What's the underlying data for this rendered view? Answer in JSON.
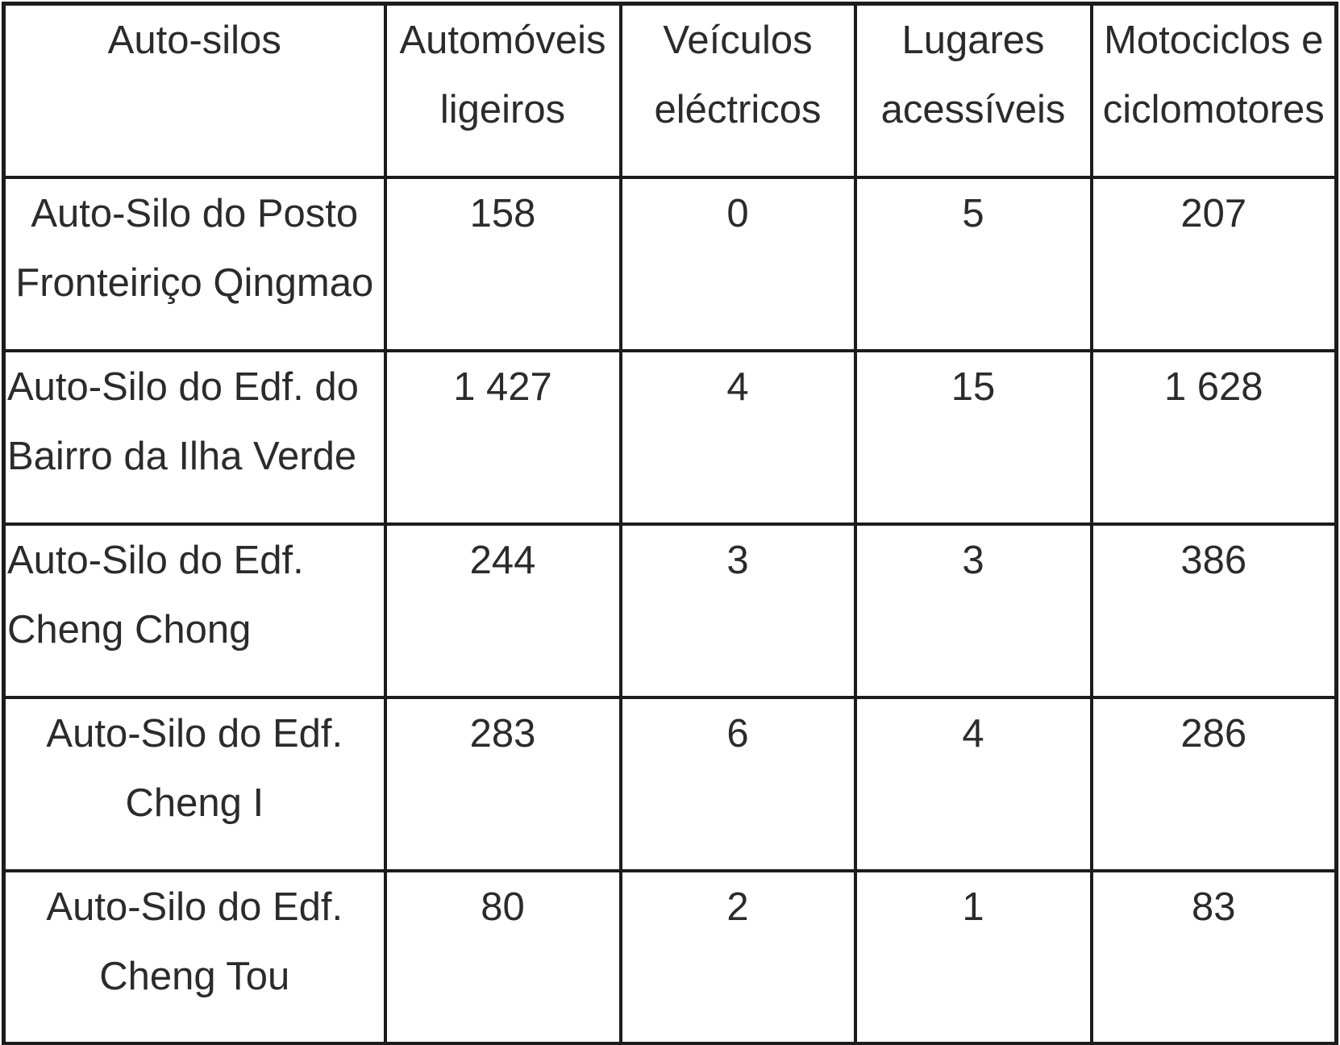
{
  "table": {
    "columns": [
      {
        "label": "Auto-silos"
      },
      {
        "label": "Automóveis ligeiros"
      },
      {
        "label": "Veículos eléctricos"
      },
      {
        "label": "Lugares acessíveis"
      },
      {
        "label": "Motociclos e ciclomotores"
      }
    ],
    "rows": [
      {
        "name": "Auto-Silo do Posto Fronteiriço Qingmao",
        "align": "center",
        "values": [
          "158",
          "0",
          "5",
          "207"
        ]
      },
      {
        "name": "Auto-Silo do Edf. do Bairro da Ilha Verde",
        "align": "left",
        "values": [
          "1 427",
          "4",
          "15",
          "1 628"
        ]
      },
      {
        "name": "Auto-Silo do Edf. Cheng Chong",
        "align": "left",
        "values": [
          "244",
          "3",
          "3",
          "386"
        ]
      },
      {
        "name": "Auto-Silo do Edf. Cheng I",
        "align": "center",
        "values": [
          "283",
          "6",
          "4",
          "286"
        ]
      },
      {
        "name": "Auto-Silo do Edf. Cheng Tou",
        "align": "center",
        "values": [
          "80",
          "2",
          "1",
          "83"
        ]
      }
    ]
  },
  "colors": {
    "border": "#1c1c1c",
    "text": "#2b2b2b",
    "background": "#ffffff"
  }
}
